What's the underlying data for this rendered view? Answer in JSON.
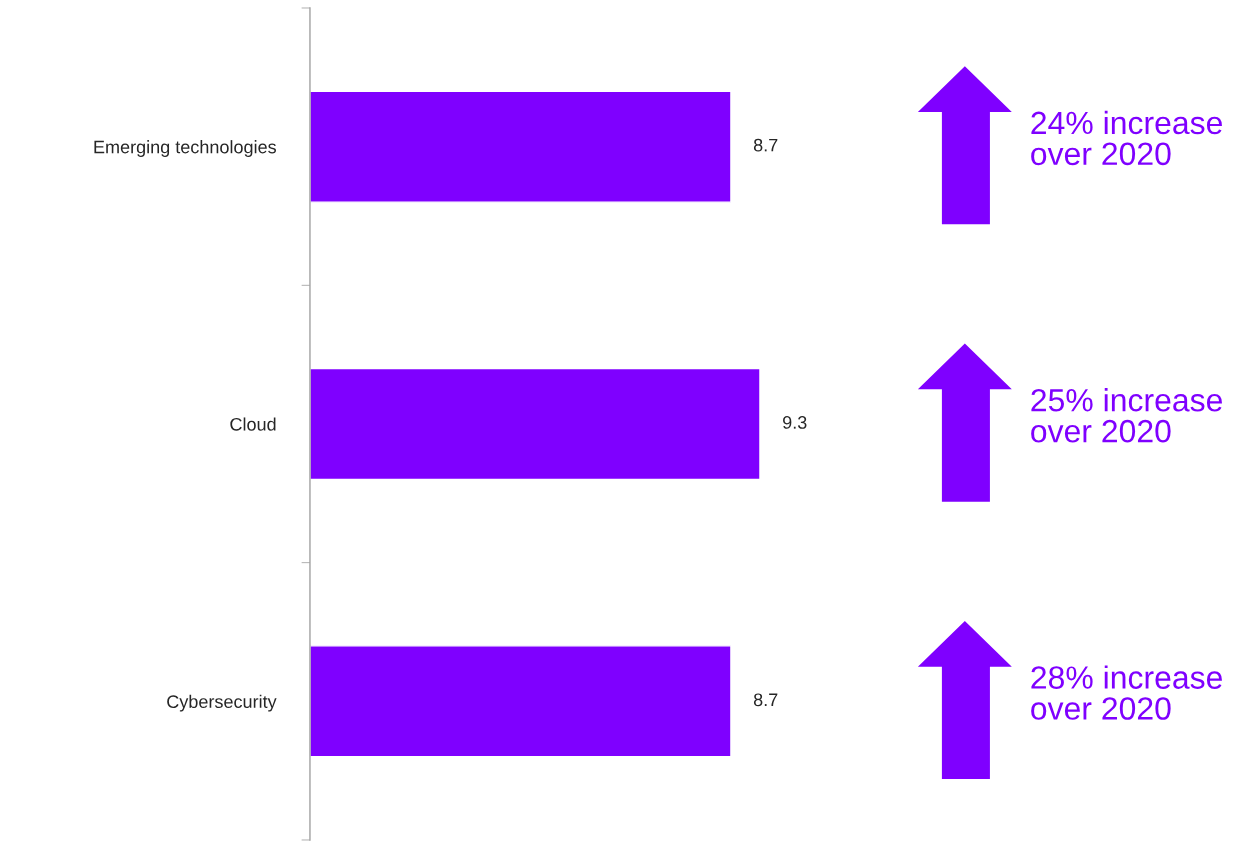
{
  "chart_data": {
    "type": "bar",
    "orientation": "horizontal",
    "categories": [
      "Emerging technologies",
      "Cloud",
      "Cybersecurity"
    ],
    "series": [
      {
        "color": "#7f00ff",
        "values": [
          8.7,
          9.3,
          8.7
        ]
      }
    ],
    "data_labels": true,
    "grid": false,
    "legend": false,
    "tick_labels": "y",
    "annotations": [
      "24% increase\nover 2020",
      "25% increase\nover 2020",
      "28% increase\nover 2020"
    ]
  }
}
